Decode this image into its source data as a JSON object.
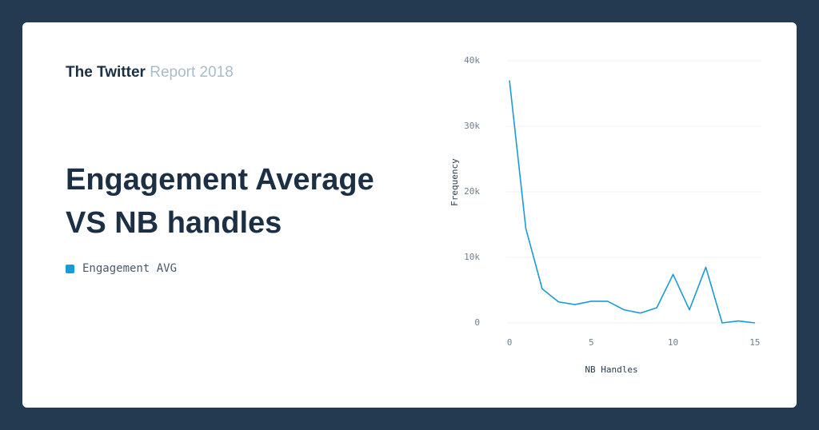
{
  "header": {
    "brand": "The Twitter",
    "report": "Report 2018"
  },
  "chart_data": {
    "type": "line",
    "title": "Engagement Average VS NB handles",
    "x_label": "NB Handles",
    "y_label": "Frequency",
    "x": [
      0,
      1,
      2,
      3,
      4,
      5,
      6,
      7,
      8,
      9,
      10,
      11,
      12,
      13,
      14,
      15
    ],
    "series": [
      {
        "name": "Engagement AVG",
        "color": "#1a9bd7",
        "values": [
          37000,
          14400,
          5200,
          3200,
          2800,
          3300,
          3300,
          2000,
          1500,
          2300,
          7400,
          2000,
          8500,
          0,
          300,
          0
        ]
      }
    ],
    "xlim": [
      0,
      15.4
    ],
    "xticks": [
      0,
      5,
      10,
      15
    ],
    "ylim": [
      0,
      40000
    ],
    "yticks": [
      0,
      {
        "value": 10000,
        "label": "10k"
      },
      {
        "value": 20000,
        "label": "20k"
      },
      {
        "value": 30000,
        "label": "30k"
      },
      {
        "value": 40000,
        "label": "40k"
      }
    ],
    "grid": true
  }
}
